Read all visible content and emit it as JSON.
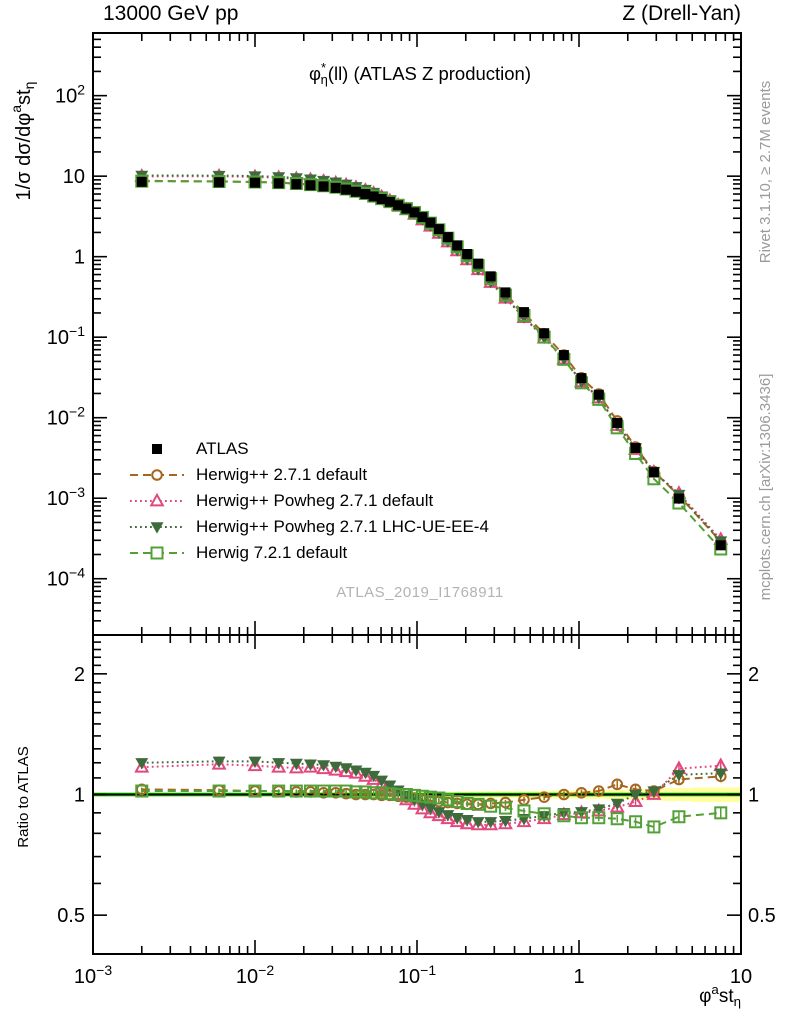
{
  "titles": {
    "top_left": "13000 GeV pp",
    "top_right": "Z (Drell-Yan)",
    "inner_title": {
      "phi": "φ",
      "sup": "*",
      "sub": "η",
      "rest": "(ll) (ATLAS Z production)"
    },
    "watermark": "ATLAS_2019_I1768911",
    "right_top": "Rivet 3.1.10, ≥ 2.7M events",
    "right_bottom": "mcplots.cern.ch [arXiv:1306.3436]"
  },
  "axis_labels": {
    "y_main": {
      "pre": "1/σ dσ/dφ",
      "sup": "a",
      "mid": "st",
      "sub": "η"
    },
    "y_ratio": "Ratio to ATLAS",
    "x": {
      "pre": "φ",
      "sup": "a",
      "mid": "st",
      "sub": "η"
    }
  },
  "chart_data": {
    "type": "line",
    "title": "φ*_η(ll) (ATLAS Z production)",
    "xlabel": "φ^a st_η",
    "ylabel_main": "1/σ dσ/dφ^a st_η",
    "ylabel_ratio": "Ratio to ATLAS",
    "x_axis": {
      "scale": "log",
      "range": [
        0.001,
        10
      ],
      "ticks": [
        {
          "v": 0.001,
          "b": "10",
          "e": "−3"
        },
        {
          "v": 0.01,
          "b": "10",
          "e": "−2"
        },
        {
          "v": 0.1,
          "b": "10",
          "e": "−1"
        },
        {
          "v": 1,
          "b": "1"
        },
        {
          "v": 10,
          "b": "10"
        }
      ]
    },
    "y_main_axis": {
      "scale": "log",
      "range": [
        2e-05,
        600
      ],
      "ticks": [
        {
          "v": 100,
          "b": "10",
          "e": "2"
        },
        {
          "v": 10,
          "b": "10"
        },
        {
          "v": 1,
          "b": "1"
        },
        {
          "v": 0.1,
          "b": "10",
          "e": "−1"
        },
        {
          "v": 0.01,
          "b": "10",
          "e": "−2"
        },
        {
          "v": 0.001,
          "b": "10",
          "e": "−3"
        },
        {
          "v": 0.0001,
          "b": "10",
          "e": "−4"
        }
      ]
    },
    "y_ratio_axis": {
      "scale": "log",
      "range": [
        0.4,
        2.5
      ],
      "ticks": [
        {
          "v": 0.5,
          "b": "0.5"
        },
        {
          "v": 1,
          "b": "1"
        },
        {
          "v": 2,
          "b": "2"
        }
      ],
      "minor": [
        0.4,
        0.6,
        0.7,
        0.8,
        0.9,
        1.1,
        1.2,
        1.3,
        1.4,
        1.5,
        1.6,
        1.7,
        1.8,
        1.9,
        2.1,
        2.2,
        2.3,
        2.4
      ]
    },
    "bin_edges": [
      0.001,
      0.004,
      0.008,
      0.012,
      0.016,
      0.02,
      0.024,
      0.029,
      0.034,
      0.039,
      0.045,
      0.051,
      0.057,
      0.064,
      0.072,
      0.081,
      0.091,
      0.102,
      0.114,
      0.128,
      0.145,
      0.165,
      0.189,
      0.219,
      0.258,
      0.312,
      0.391,
      0.524,
      0.695,
      0.918,
      1.153,
      1.496,
      1.947,
      2.522,
      3.277,
      5.0,
      10.0
    ],
    "x": [
      0.002,
      0.006,
      0.01,
      0.014,
      0.018,
      0.022,
      0.0265,
      0.0315,
      0.0365,
      0.042,
      0.048,
      0.054,
      0.0605,
      0.068,
      0.0765,
      0.086,
      0.0965,
      0.108,
      0.121,
      0.1365,
      0.155,
      0.177,
      0.204,
      0.2385,
      0.285,
      0.3515,
      0.4575,
      0.6095,
      0.8065,
      1.0355,
      1.3245,
      1.7215,
      2.2345,
      2.8995,
      4.1385,
      7.5
    ],
    "data": {
      "label": "ATLAS",
      "color": "#000000",
      "marker": "square-filled",
      "values": [
        8.5,
        8.4,
        8.3,
        8.15,
        7.95,
        7.7,
        7.45,
        7.15,
        6.8,
        6.4,
        6.0,
        5.6,
        5.2,
        4.8,
        4.35,
        3.95,
        3.55,
        3.1,
        2.65,
        2.2,
        1.75,
        1.38,
        1.08,
        0.82,
        0.57,
        0.36,
        0.205,
        0.112,
        0.06,
        0.031,
        0.0193,
        0.0086,
        0.0042,
        0.0021,
        0.00099,
        0.00026
      ]
    },
    "band": {
      "color": "#ffff9e",
      "half_width": [
        0.012,
        0.012,
        0.012,
        0.012,
        0.012,
        0.012,
        0.013,
        0.013,
        0.013,
        0.013,
        0.014,
        0.014,
        0.014,
        0.015,
        0.015,
        0.015,
        0.016,
        0.016,
        0.016,
        0.017,
        0.017,
        0.018,
        0.018,
        0.019,
        0.02,
        0.02,
        0.021,
        0.022,
        0.023,
        0.024,
        0.025,
        0.027,
        0.03,
        0.033,
        0.037,
        0.042
      ]
    },
    "ref_line_color": "#00a000",
    "series": [
      {
        "label": "Herwig++ 2.7.1 default",
        "color": "#a5671f",
        "marker": "circle-open",
        "line": "dashed",
        "ratio": [
          1.03,
          1.025,
          1.02,
          1.02,
          1.015,
          1.015,
          1.01,
          1.01,
          1.005,
          1.0,
          1.0,
          1.0,
          0.995,
          0.995,
          0.99,
          0.985,
          0.98,
          0.975,
          0.965,
          0.96,
          0.955,
          0.95,
          0.945,
          0.945,
          0.95,
          0.955,
          0.97,
          0.985,
          1.0,
          1.01,
          1.02,
          1.06,
          1.03,
          1.02,
          1.09,
          1.11
        ]
      },
      {
        "label": "Herwig++ Powheg 2.7.1 default",
        "color": "#e2477e",
        "marker": "triangle-up-open",
        "line": "dotted",
        "ratio": [
          1.17,
          1.19,
          1.18,
          1.17,
          1.165,
          1.17,
          1.16,
          1.15,
          1.14,
          1.13,
          1.11,
          1.09,
          1.06,
          1.03,
          1.0,
          0.97,
          0.945,
          0.92,
          0.9,
          0.885,
          0.87,
          0.855,
          0.845,
          0.84,
          0.84,
          0.845,
          0.855,
          0.87,
          0.89,
          0.9,
          0.91,
          0.93,
          0.96,
          1.0,
          1.16,
          1.18
        ]
      },
      {
        "label": "Herwig++ Powheg 2.7.1 LHC-UE-EE-4",
        "color": "#3f6b3c",
        "marker": "triangle-down-filled",
        "line": "dotted",
        "ratio": [
          1.2,
          1.21,
          1.21,
          1.2,
          1.195,
          1.19,
          1.185,
          1.175,
          1.165,
          1.15,
          1.135,
          1.115,
          1.085,
          1.055,
          1.025,
          0.995,
          0.97,
          0.945,
          0.925,
          0.905,
          0.89,
          0.875,
          0.865,
          0.855,
          0.855,
          0.86,
          0.87,
          0.885,
          0.9,
          0.905,
          0.92,
          0.95,
          1.0,
          1.02,
          1.12,
          1.13
        ]
      },
      {
        "label": "Herwig 7.2.1 default",
        "color": "#54a038",
        "marker": "square-open",
        "line": "dashed",
        "ratio": [
          1.02,
          1.02,
          1.02,
          1.02,
          1.02,
          1.02,
          1.02,
          1.02,
          1.02,
          1.015,
          1.015,
          1.01,
          1.01,
          1.005,
          1.0,
          1.0,
          0.995,
          0.99,
          0.985,
          0.98,
          0.97,
          0.96,
          0.95,
          0.945,
          0.935,
          0.925,
          0.91,
          0.895,
          0.885,
          0.875,
          0.875,
          0.87,
          0.855,
          0.83,
          0.88,
          0.9
        ]
      }
    ]
  }
}
